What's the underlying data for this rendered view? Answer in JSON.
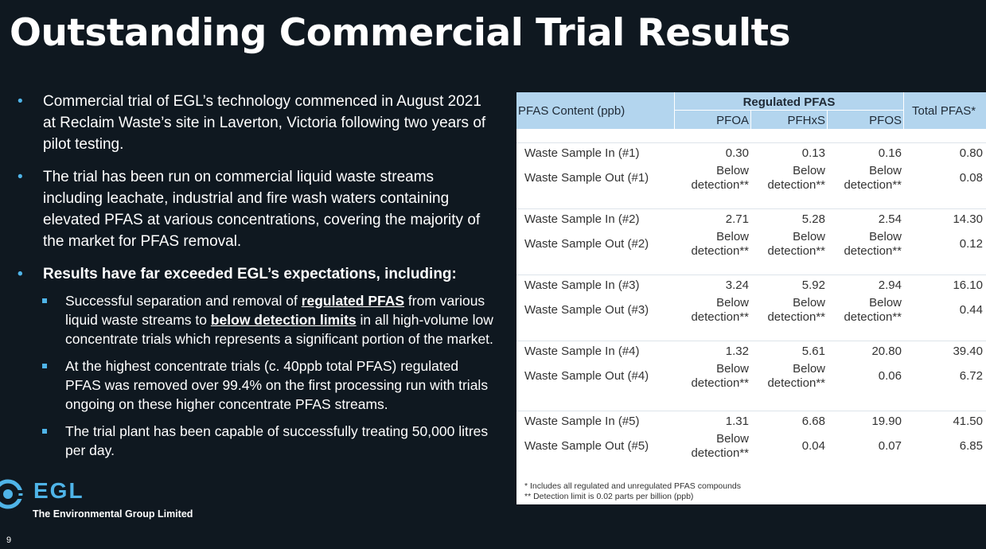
{
  "title": "Outstanding Commercial Trial Results",
  "bullets": [
    {
      "text": "Commercial trial of EGL’s technology commenced in August 2021 at Reclaim Waste’s site in Laverton, Victoria following two years of pilot testing."
    },
    {
      "text": "The trial has been run on commercial liquid waste streams including leachate, industrial and fire wash waters containing elevated PFAS at various concentrations, covering the majority of the market for PFAS removal."
    },
    {
      "text": "Results have far exceeded EGL’s expectations, including:"
    }
  ],
  "subbullets": {
    "s1": {
      "pre": "Successful separation and removal of ",
      "u1": "regulated PFAS",
      "mid": " from various liquid waste streams to ",
      "u2": "below detection limits",
      "post": " in all high-volume low concentrate trials which represents a significant portion of the market."
    },
    "s2": "At the highest concentrate trials (c. 40ppb total PFAS) regulated PFAS was removed over 99.4% on the first processing run with trials ongoing on these higher concentrate PFAS streams.",
    "s3": "The trial plant has been capable of successfully treating 50,000 litres per day."
  },
  "table": {
    "header": {
      "content": "PFAS Content (ppb)",
      "group": "Regulated PFAS",
      "pfoa": "PFOA",
      "pfhxs": "PFHxS",
      "pfos": "PFOS",
      "total": "Total PFAS*"
    },
    "rows": [
      {
        "label": "Waste Sample In (#1)",
        "pfoa": "0.30",
        "pfhxs": "0.13",
        "pfos": "0.16",
        "total": "0.80"
      },
      {
        "label": "Waste Sample Out (#1)",
        "pfoa": "Below detection**",
        "pfhxs": "Below detection**",
        "pfos": "Below detection**",
        "total": "0.08"
      },
      {
        "label": "Waste Sample In (#2)",
        "pfoa": "2.71",
        "pfhxs": "5.28",
        "pfos": "2.54",
        "total": "14.30"
      },
      {
        "label": "Waste Sample Out (#2)",
        "pfoa": "Below detection**",
        "pfhxs": "Below detection**",
        "pfos": "Below detection**",
        "total": "0.12"
      },
      {
        "label": "Waste Sample In (#3)",
        "pfoa": "3.24",
        "pfhxs": "5.92",
        "pfos": "2.94",
        "total": "16.10"
      },
      {
        "label": "Waste Sample Out (#3)",
        "pfoa": "Below detection**",
        "pfhxs": "Below detection**",
        "pfos": "Below detection**",
        "total": "0.44"
      },
      {
        "label": "Waste Sample In (#4)",
        "pfoa": "1.32",
        "pfhxs": "5.61",
        "pfos": "20.80",
        "total": "39.40"
      },
      {
        "label": "Waste Sample Out (#4)",
        "pfoa": "Below detection**",
        "pfhxs": "Below detection**",
        "pfos": "0.06",
        "total": "6.72"
      },
      {
        "label": "Waste Sample In (#5)",
        "pfoa": "1.31",
        "pfhxs": "6.68",
        "pfos": "19.90",
        "total": "41.50"
      },
      {
        "label": "Waste Sample Out (#5)",
        "pfoa": "Below detection**",
        "pfhxs": "0.04",
        "pfos": "0.07",
        "total": "6.85"
      }
    ],
    "notes": [
      "*   Includes all regulated and unregulated PFAS compounds",
      "** Detection limit is 0.02 parts per billion (ppb)"
    ]
  },
  "logo": {
    "name": "EGL",
    "subtitle": "The Environmental Group Limited"
  },
  "page_number": "9"
}
